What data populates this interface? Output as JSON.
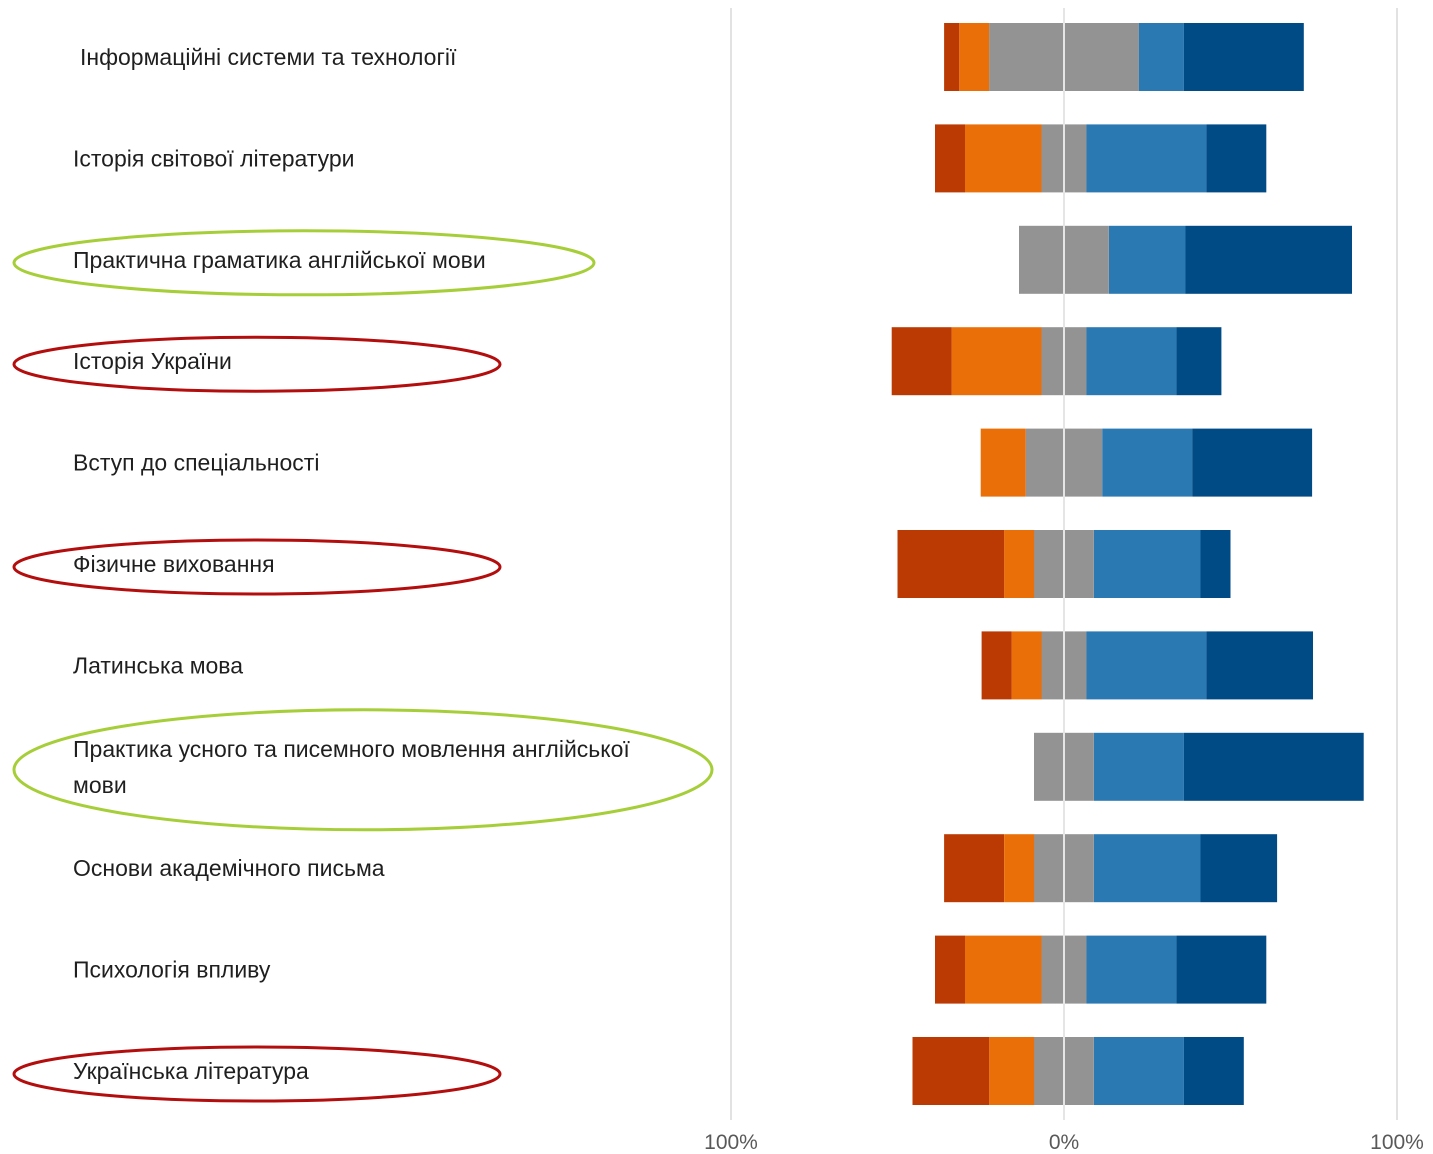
{
  "chart_data": {
    "type": "bar",
    "orientation": "horizontal",
    "layout": "diverging-stacked",
    "colors": {
      "strongly_negative": "#BB3A04",
      "negative": "#EB6F09",
      "neutral": "#939393",
      "positive": "#2B79B3",
      "strongly_positive": "#004A85",
      "gridline": "#D9D9D9",
      "center_line": "#E5E5E5",
      "highlight_green": "#A6CE39",
      "highlight_red": "#B30D0D"
    },
    "x_ticks": [
      "100%",
      "0%",
      "100%"
    ],
    "xlim": [
      -100,
      100
    ],
    "categories": [
      {
        "label": [
          "Інформаційні системи та технології"
        ],
        "highlight": null
      },
      {
        "label": [
          "Історія світової літератури"
        ],
        "highlight": null
      },
      {
        "label": [
          "Практична граматика англійської мови"
        ],
        "highlight": "green"
      },
      {
        "label": [
          "Історія України"
        ],
        "highlight": "red"
      },
      {
        "label": [
          "Вступ до спеціальності"
        ],
        "highlight": null
      },
      {
        "label": [
          "Фізичне виховання"
        ],
        "highlight": "red"
      },
      {
        "label": [
          "Латинська мова"
        ],
        "highlight": null
      },
      {
        "label": [
          "Практика усного та писемного мовлення англійської",
          "мови"
        ],
        "highlight": "green"
      },
      {
        "label": [
          "Основи академічного письма"
        ],
        "highlight": null
      },
      {
        "label": [
          "Психологія впливу"
        ],
        "highlight": null
      },
      {
        "label": [
          "Українська література"
        ],
        "highlight": "red"
      }
    ],
    "series": [
      {
        "key": "strongly_negative",
        "values": [
          4.5,
          9,
          0,
          18,
          0,
          32,
          9,
          0,
          18,
          9,
          23
        ]
      },
      {
        "key": "negative",
        "values": [
          9,
          23,
          0,
          27,
          13.5,
          9,
          9,
          0,
          9,
          23,
          13.5
        ]
      },
      {
        "key": "neutral",
        "values": [
          45,
          13.5,
          27,
          13.5,
          23,
          18,
          13.5,
          18,
          18,
          13.5,
          18
        ]
      },
      {
        "key": "positive",
        "values": [
          13.5,
          36,
          23,
          27,
          27,
          32,
          36,
          27,
          32,
          27,
          27
        ]
      },
      {
        "key": "strongly_positive",
        "values": [
          36,
          18,
          50,
          13.5,
          36,
          9,
          32,
          54,
          23,
          27,
          18
        ]
      }
    ]
  }
}
